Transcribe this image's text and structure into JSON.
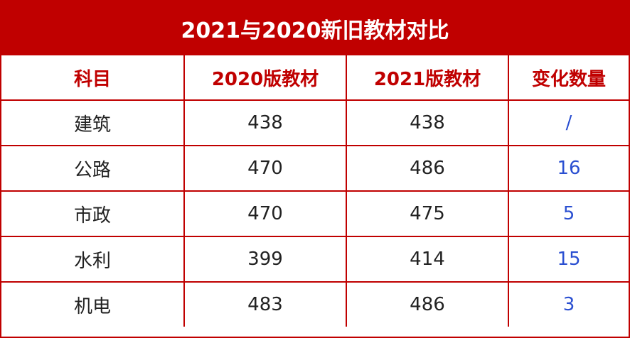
{
  "table": {
    "title": "2021与2020新旧教材对比",
    "columns": [
      "科目",
      "2020版教材",
      "2021版教材",
      "变化数量"
    ],
    "rows": [
      [
        "建筑",
        438,
        438,
        "/"
      ],
      [
        "公路",
        470,
        486,
        16
      ],
      [
        "市政",
        470,
        475,
        5
      ],
      [
        "水利",
        399,
        414,
        15
      ],
      [
        "机电",
        483,
        486,
        3
      ]
    ]
  }
}
